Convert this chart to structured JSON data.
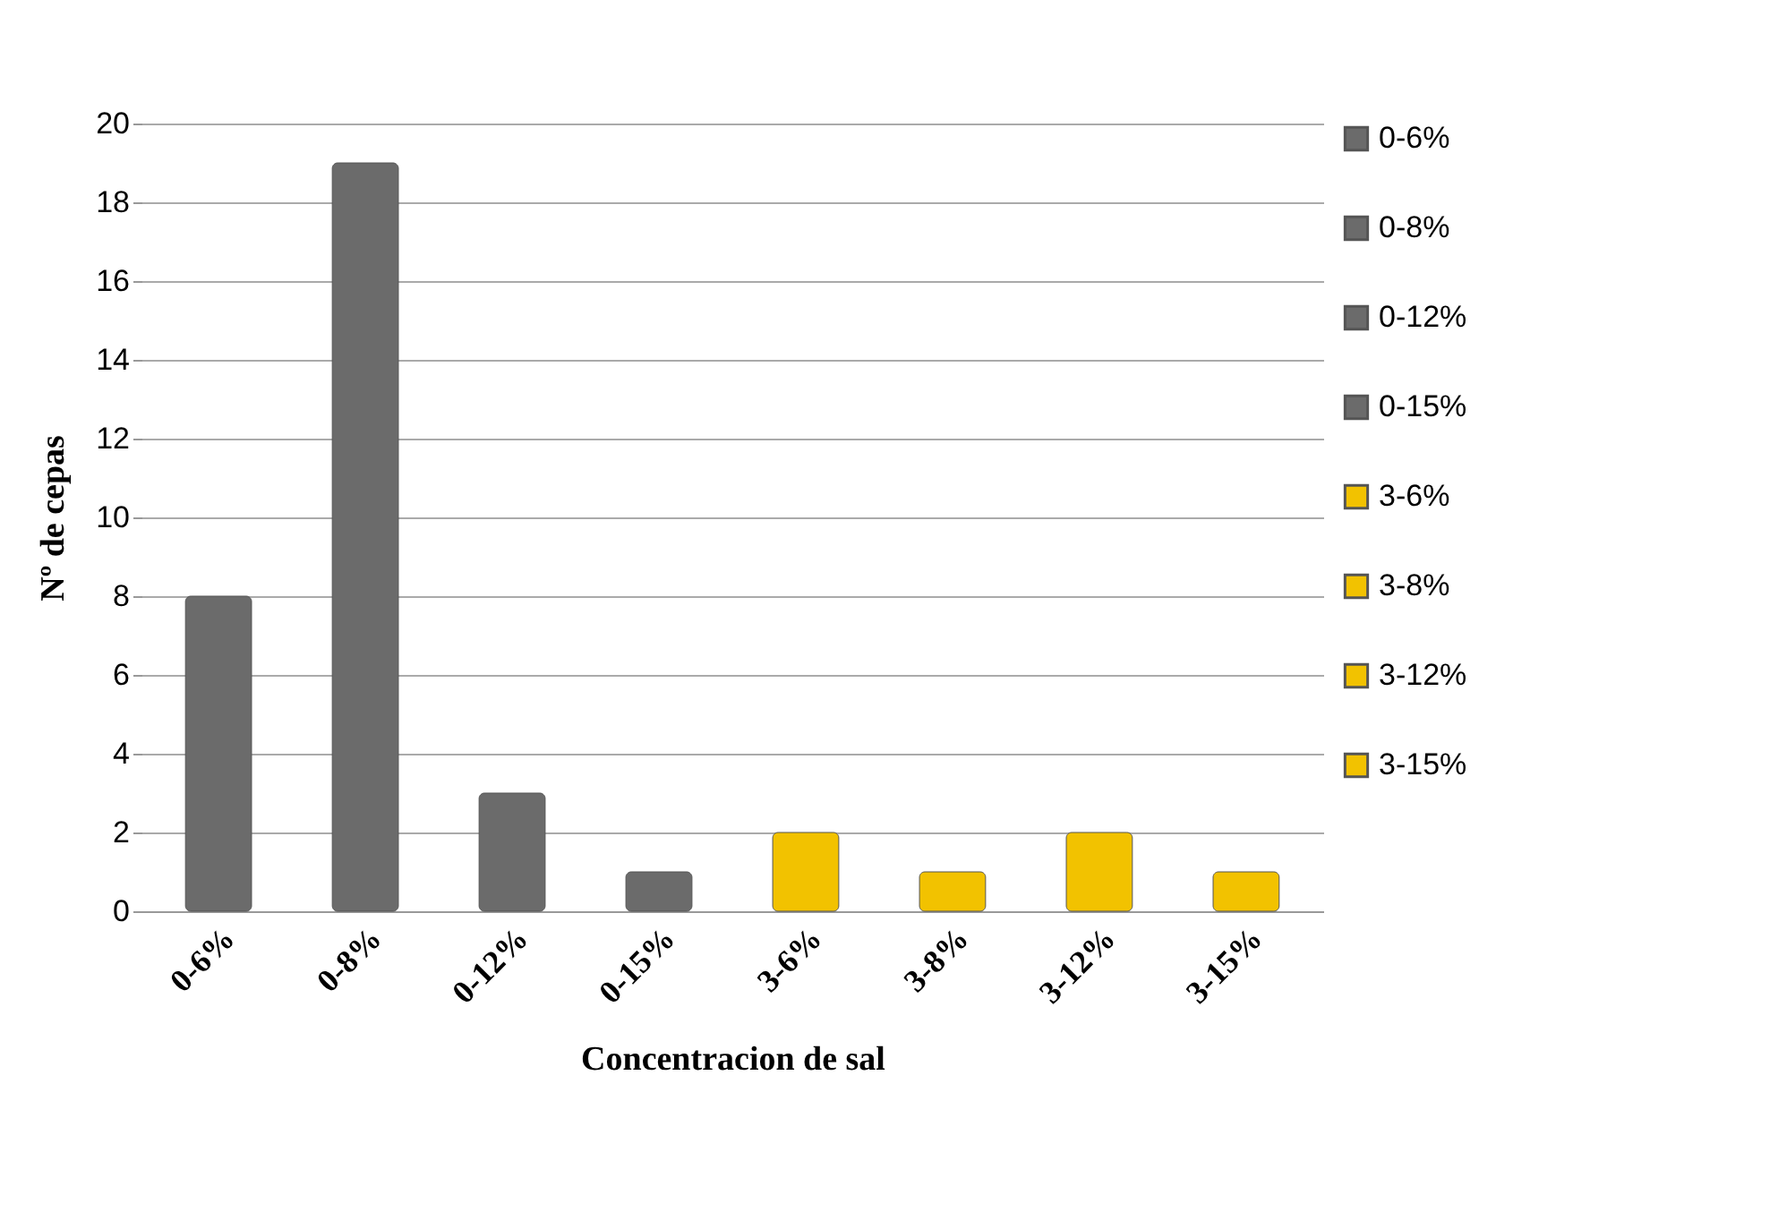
{
  "chart_data": {
    "type": "bar",
    "xlabel": "Concentracion de sal",
    "ylabel": "Nº de cepas",
    "categories": [
      "0-6%",
      "0-8%",
      "0-12%",
      "0-15%",
      "3-6%",
      "3-8%",
      "3-12%",
      "3-15%"
    ],
    "series": [
      {
        "name": "0-6%",
        "color": "#6b6b6b",
        "values": [
          8,
          null,
          null,
          null,
          null,
          null,
          null,
          null
        ]
      },
      {
        "name": "0-8%",
        "color": "#6b6b6b",
        "values": [
          null,
          19,
          null,
          null,
          null,
          null,
          null,
          null
        ]
      },
      {
        "name": "0-12%",
        "color": "#6b6b6b",
        "values": [
          null,
          null,
          3,
          null,
          null,
          null,
          null,
          null
        ]
      },
      {
        "name": "0-15%",
        "color": "#6b6b6b",
        "values": [
          null,
          null,
          null,
          1,
          null,
          null,
          null,
          null
        ]
      },
      {
        "name": "3-6%",
        "color": "#f2c200",
        "values": [
          null,
          null,
          null,
          null,
          2,
          null,
          null,
          null
        ]
      },
      {
        "name": "3-8%",
        "color": "#f2c200",
        "values": [
          null,
          null,
          null,
          null,
          null,
          1,
          null,
          null
        ]
      },
      {
        "name": "3-12%",
        "color": "#f2c200",
        "values": [
          null,
          null,
          null,
          null,
          null,
          null,
          2,
          null
        ]
      },
      {
        "name": "3-15%",
        "color": "#f2c200",
        "values": [
          null,
          null,
          null,
          null,
          null,
          null,
          null,
          1
        ]
      }
    ],
    "ylim": [
      0,
      20
    ],
    "yticks": [
      0,
      2,
      4,
      6,
      8,
      10,
      12,
      14,
      16,
      18,
      20
    ],
    "grid": "y",
    "legend": "right"
  }
}
